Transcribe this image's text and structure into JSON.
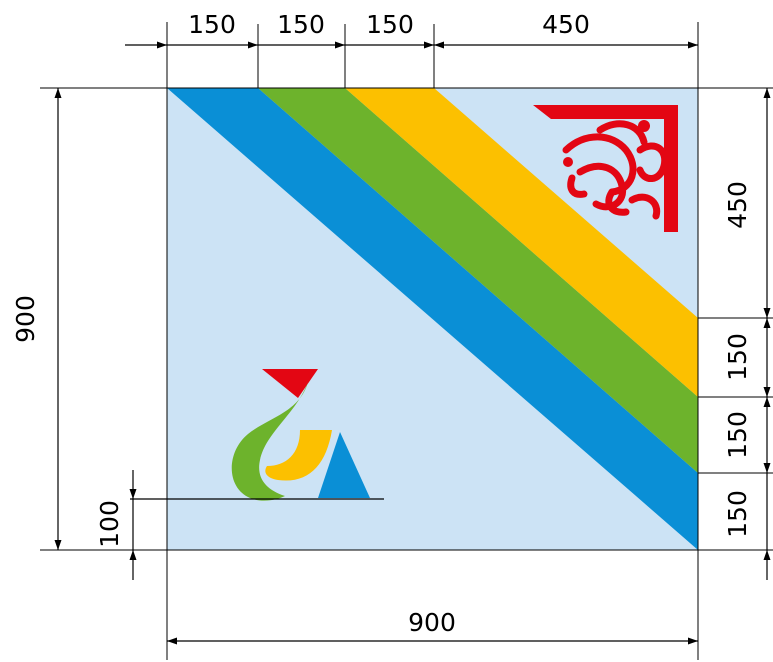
{
  "colors": {
    "background": "#cce3f5",
    "blue": "#0a8fd6",
    "green": "#6db32c",
    "yellow": "#fcc000",
    "red": "#e30613",
    "line": "#000000"
  },
  "dimensions": {
    "top": [
      "150",
      "150",
      "150",
      "450"
    ],
    "right": [
      "450",
      "150",
      "150",
      "150"
    ],
    "left": "900",
    "bottom": "900",
    "emblem_offset": "100"
  },
  "elements": {
    "corner_ornament_icon": "ornamental-corner",
    "emblem_icon": "stylized-emblem"
  }
}
